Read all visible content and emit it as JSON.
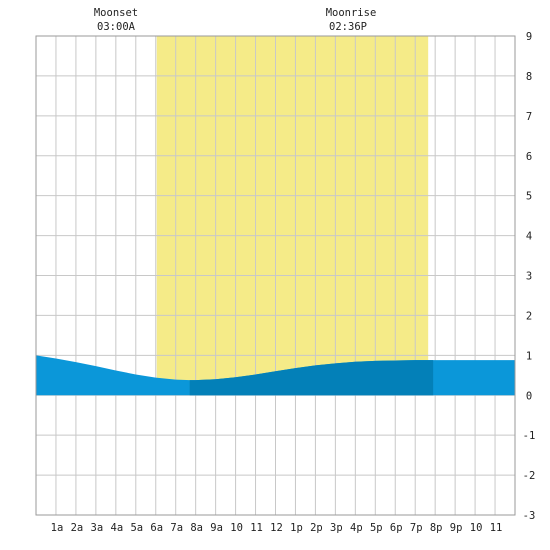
{
  "colors": {
    "background": "#ffffff",
    "grid": "#c8c8c8",
    "frame": "#9a9a9a",
    "daylight": "#f5eb88",
    "tide_night": "#0b97d9",
    "tide_day": "#0380b8"
  },
  "moon_events": [
    {
      "name": "Moonset",
      "time": "03:00A",
      "hour": 3.0
    },
    {
      "name": "Moonrise",
      "time": "02:36P",
      "hour": 14.6
    }
  ],
  "chart_data": {
    "type": "area",
    "title": "",
    "xlabel": "",
    "ylabel": "",
    "xlim": [
      0,
      24
    ],
    "ylim": [
      -3,
      9
    ],
    "grid": true,
    "x_tick_labels": [
      "1a",
      "2a",
      "3a",
      "4a",
      "5a",
      "6a",
      "7a",
      "8a",
      "9a",
      "10",
      "11",
      "12",
      "1p",
      "2p",
      "3p",
      "4p",
      "5p",
      "6p",
      "7p",
      "8p",
      "9p",
      "10",
      "11"
    ],
    "y_tick_labels": [
      "9",
      "8",
      "7",
      "6",
      "5",
      "4",
      "3",
      "2",
      "1",
      "0",
      "-1",
      "-2",
      "-3"
    ],
    "daylight": {
      "start_hour": 6.05,
      "end_hour": 19.65
    },
    "tide_day_band": {
      "start_hour": 7.7,
      "end_hour": 19.9
    },
    "series": [
      {
        "x": [
          0,
          1,
          2,
          3,
          4,
          5,
          6,
          7,
          7.7,
          8,
          9,
          10,
          11,
          12,
          13,
          14,
          15,
          16,
          17,
          18,
          19,
          20,
          21,
          22,
          23,
          24
        ],
        "values": [
          1.0,
          0.92,
          0.83,
          0.73,
          0.62,
          0.52,
          0.44,
          0.39,
          0.38,
          0.38,
          0.4,
          0.45,
          0.52,
          0.6,
          0.68,
          0.75,
          0.8,
          0.84,
          0.86,
          0.87,
          0.88,
          0.88,
          0.88,
          0.88,
          0.88,
          0.88
        ]
      }
    ]
  }
}
